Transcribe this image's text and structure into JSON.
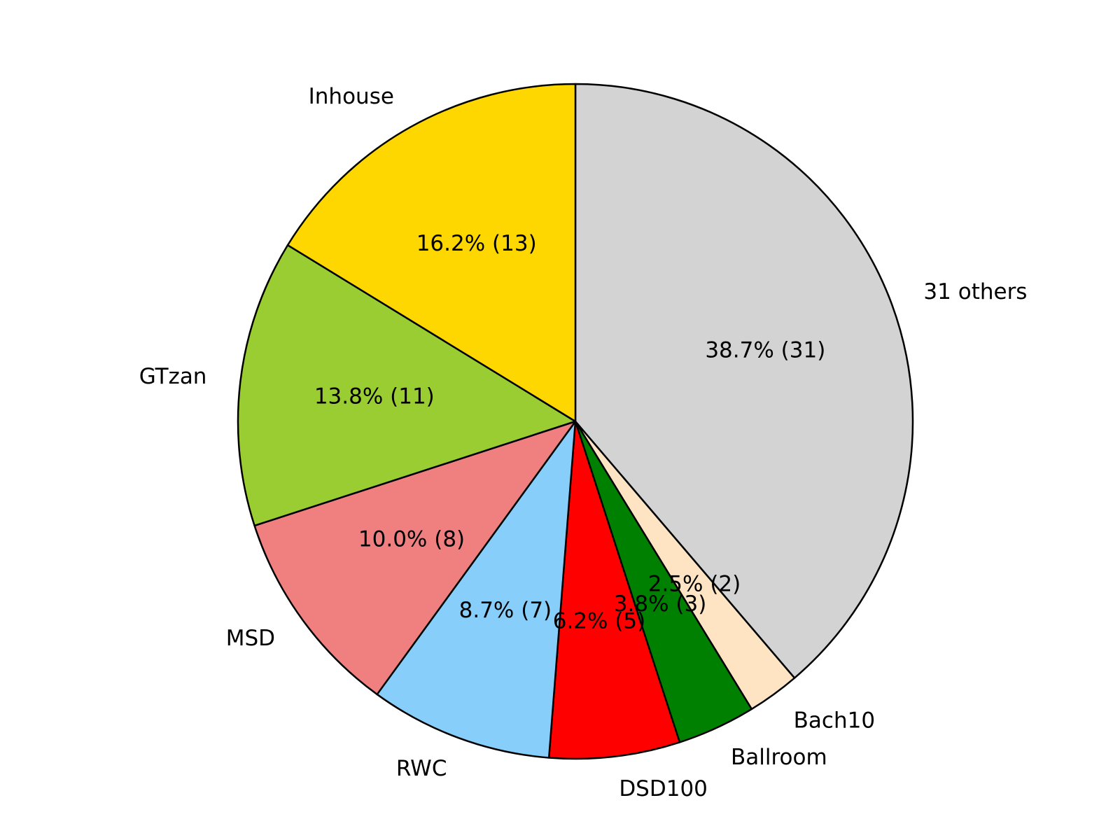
{
  "chart_data": {
    "type": "pie",
    "categories": [
      "31 others",
      "Bach10",
      "Ballroom",
      "DSD100",
      "RWC",
      "MSD",
      "GTzan",
      "Inhouse"
    ],
    "values": [
      31,
      2,
      3,
      5,
      7,
      8,
      11,
      13
    ],
    "value_labels": [
      "38.7%  (31)",
      "2.5%  (2)",
      "3.8%  (3)",
      "6.2%  (5)",
      "8.7%  (7)",
      "10.0%  (8)",
      "13.8%  (11)",
      "16.2%  (13)"
    ],
    "colors": [
      "#d3d3d3",
      "#ffe4c4",
      "#008000",
      "#ff0000",
      "#87cefa",
      "#f08080",
      "#9acd32",
      "#ffd700"
    ],
    "start_angle": 90,
    "counterclock": false
  }
}
